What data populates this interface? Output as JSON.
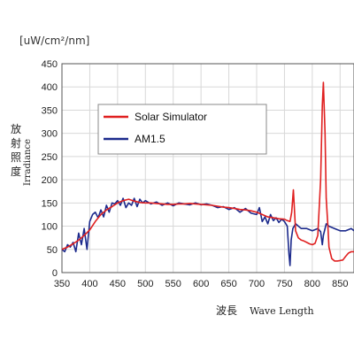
{
  "chart_data": {
    "type": "line",
    "unit_label": "[uW/cm²/nm]",
    "ylabel_jp": "放射照度",
    "ylabel_en": "Irradiance",
    "xlabel_jp": "波長",
    "xlabel_en": "Wave Length",
    "xlim": [
      350,
      875
    ],
    "ylim": [
      0,
      450
    ],
    "x_ticks": [
      350,
      400,
      450,
      500,
      550,
      600,
      650,
      700,
      750,
      800,
      850
    ],
    "y_ticks": [
      0,
      50,
      100,
      150,
      200,
      250,
      300,
      350,
      400,
      450
    ],
    "grid": true,
    "legend_position": "upper-left",
    "series": [
      {
        "name": "Solar Simulator",
        "color": "#e02020",
        "x": [
          350,
          360,
          370,
          380,
          390,
          400,
          410,
          420,
          430,
          440,
          450,
          460,
          470,
          480,
          490,
          500,
          510,
          520,
          530,
          540,
          550,
          560,
          570,
          580,
          590,
          600,
          610,
          620,
          630,
          640,
          650,
          660,
          670,
          680,
          690,
          700,
          710,
          720,
          730,
          740,
          750,
          755,
          760,
          763,
          766,
          770,
          775,
          780,
          785,
          790,
          795,
          800,
          805,
          810,
          815,
          818,
          820,
          823,
          825,
          828,
          830,
          835,
          840,
          845,
          850,
          855,
          860,
          865,
          870,
          875
        ],
        "values": [
          50,
          55,
          62,
          70,
          80,
          92,
          110,
          125,
          135,
          142,
          150,
          155,
          158,
          154,
          151,
          150,
          150,
          149,
          148,
          147,
          147,
          148,
          148,
          149,
          148,
          147,
          146,
          145,
          143,
          141,
          140,
          138,
          136,
          135,
          133,
          130,
          125,
          120,
          118,
          116,
          115,
          112,
          110,
          130,
          178,
          90,
          75,
          70,
          68,
          65,
          62,
          60,
          63,
          80,
          200,
          360,
          410,
          300,
          160,
          100,
          55,
          30,
          25,
          25,
          26,
          27,
          35,
          42,
          45,
          45
        ]
      },
      {
        "name": "AM1.5",
        "color": "#1c2a8c",
        "x": [
          350,
          355,
          360,
          365,
          370,
          375,
          380,
          385,
          390,
          395,
          400,
          405,
          410,
          415,
          420,
          425,
          430,
          435,
          440,
          445,
          450,
          455,
          460,
          465,
          470,
          475,
          480,
          485,
          490,
          495,
          500,
          510,
          520,
          530,
          540,
          550,
          560,
          570,
          580,
          590,
          600,
          610,
          620,
          630,
          640,
          650,
          660,
          670,
          680,
          690,
          700,
          705,
          710,
          715,
          720,
          725,
          730,
          735,
          740,
          745,
          750,
          755,
          758,
          760,
          762,
          765,
          770,
          780,
          790,
          800,
          810,
          815,
          818,
          820,
          823,
          825,
          830,
          840,
          850,
          860,
          870,
          875
        ],
        "values": [
          50,
          45,
          60,
          55,
          65,
          45,
          85,
          60,
          95,
          50,
          110,
          125,
          130,
          118,
          135,
          120,
          145,
          130,
          150,
          148,
          155,
          145,
          160,
          140,
          150,
          145,
          160,
          142,
          158,
          150,
          155,
          148,
          152,
          145,
          150,
          144,
          150,
          148,
          146,
          150,
          146,
          148,
          145,
          140,
          142,
          136,
          140,
          130,
          138,
          128,
          125,
          140,
          110,
          120,
          105,
          125,
          112,
          118,
          108,
          115,
          110,
          100,
          40,
          15,
          70,
          95,
          105,
          95,
          95,
          90,
          95,
          88,
          60,
          80,
          95,
          105,
          100,
          95,
          90,
          90,
          95,
          90
        ]
      }
    ]
  }
}
